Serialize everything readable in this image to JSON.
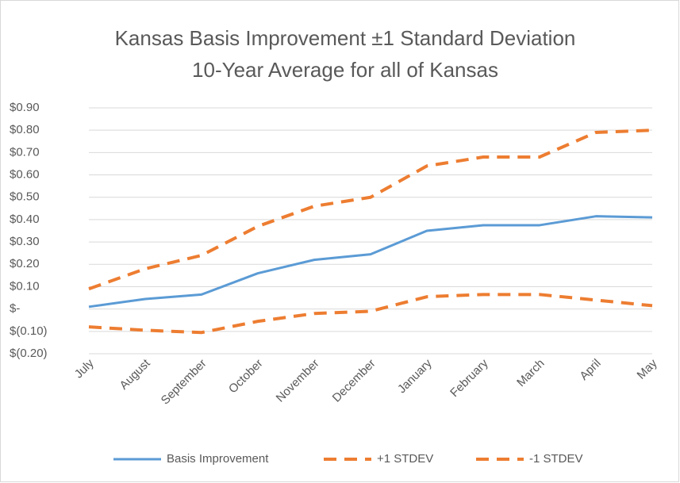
{
  "chart_data": {
    "type": "line",
    "title": "Kansas Basis Improvement ±1 Standard Deviation",
    "subtitle": "10-Year Average for all of Kansas",
    "categories": [
      "July",
      "August",
      "September",
      "October",
      "November",
      "December",
      "January",
      "February",
      "March",
      "April",
      "May"
    ],
    "series": [
      {
        "name": "Basis Improvement",
        "color": "#5b9bd5",
        "dashed": false,
        "values": [
          0.01,
          0.045,
          0.065,
          0.16,
          0.22,
          0.245,
          0.35,
          0.375,
          0.375,
          0.415,
          0.41
        ]
      },
      {
        "name": "+1 STDEV",
        "color": "#ed7d31",
        "dashed": true,
        "values": [
          0.09,
          0.18,
          0.24,
          0.37,
          0.46,
          0.5,
          0.64,
          0.68,
          0.68,
          0.79,
          0.8
        ]
      },
      {
        "name": "-1 STDEV",
        "color": "#ed7d31",
        "dashed": true,
        "values": [
          -0.08,
          -0.095,
          -0.105,
          -0.055,
          -0.02,
          -0.01,
          0.055,
          0.065,
          0.065,
          0.04,
          0.015
        ]
      }
    ],
    "ylim": [
      -0.2,
      0.9
    ],
    "yticks": [
      {
        "value": -0.2,
        "label": "$(0.20)"
      },
      {
        "value": -0.1,
        "label": "$(0.10)"
      },
      {
        "value": 0,
        "label": "$-"
      },
      {
        "value": 0.1,
        "label": "$0.10"
      },
      {
        "value": 0.2,
        "label": "$0.20"
      },
      {
        "value": 0.3,
        "label": "$0.30"
      },
      {
        "value": 0.4,
        "label": "$0.40"
      },
      {
        "value": 0.5,
        "label": "$0.50"
      },
      {
        "value": 0.6,
        "label": "$0.60"
      },
      {
        "value": 0.7,
        "label": "$0.70"
      },
      {
        "value": 0.8,
        "label": "$0.80"
      },
      {
        "value": 0.9,
        "label": "$0.90"
      }
    ],
    "grid": true,
    "legend": "bottom"
  }
}
